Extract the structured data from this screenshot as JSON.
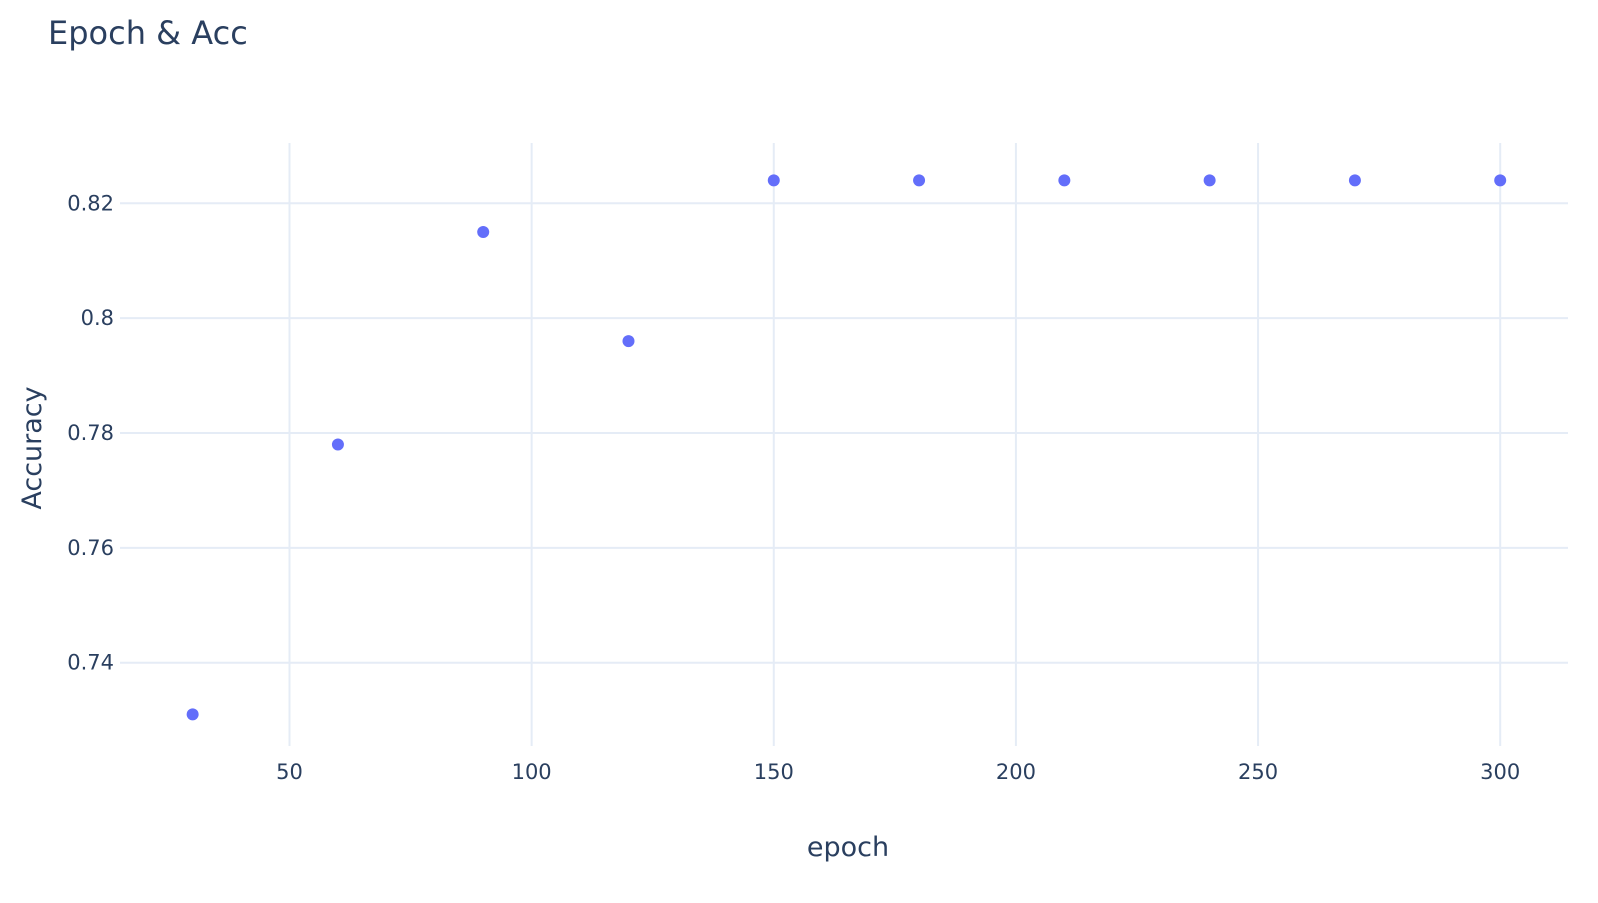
{
  "chart_data": {
    "type": "scatter",
    "title": "Epoch & Acc",
    "xlabel": "epoch",
    "ylabel": "Accuracy",
    "xlim": [
      15,
      314
    ],
    "ylim": [
      0.7255,
      0.8305
    ],
    "xticks": [
      50,
      100,
      150,
      200,
      250,
      300
    ],
    "xtick_labels": [
      "50",
      "100",
      "150",
      "200",
      "250",
      "300"
    ],
    "yticks": [
      0.74,
      0.76,
      0.78,
      0.8,
      0.82
    ],
    "ytick_labels": [
      "0.74",
      "0.76",
      "0.78",
      "0.8",
      "0.82"
    ],
    "grid": true,
    "legend": "none",
    "series": [
      {
        "color": "#636efa",
        "x": [
          30,
          60,
          90,
          120,
          150,
          180,
          210,
          240,
          270,
          300
        ],
        "y": [
          0.731,
          0.778,
          0.815,
          0.796,
          0.824,
          0.824,
          0.824,
          0.824,
          0.824,
          0.824
        ]
      }
    ]
  },
  "colors": {
    "background": "#ffffff",
    "grid": "#e5ecf6",
    "text": "#2a3f5f",
    "marker": "#636efa"
  }
}
